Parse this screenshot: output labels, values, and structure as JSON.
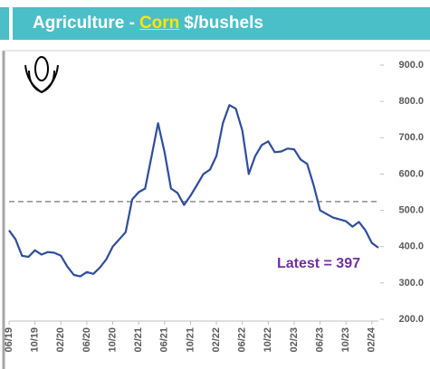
{
  "chart_data": {
    "type": "line",
    "title": {
      "prefix": "Agriculture -",
      "highlight": "Corn",
      "suffix": "$/bushels"
    },
    "categories": [
      "06/19",
      null,
      null,
      null,
      "10/19",
      null,
      null,
      null,
      "02/20",
      null,
      null,
      null,
      "06/20",
      null,
      null,
      null,
      "10/20",
      null,
      null,
      null,
      "02/21",
      null,
      null,
      null,
      "06/21",
      null,
      null,
      null,
      "10/21",
      null,
      null,
      null,
      "02/22",
      null,
      null,
      null,
      "06/22",
      null,
      null,
      null,
      "10/22",
      null,
      null,
      null,
      "02/23",
      null,
      null,
      null,
      "06/23",
      null,
      null,
      null,
      "10/23",
      null,
      null,
      null,
      "02/24",
      null
    ],
    "series": [
      {
        "name": "Corn",
        "color": "#2e4d9c",
        "values": [
          445,
          420,
          375,
          372,
          390,
          378,
          385,
          383,
          375,
          345,
          322,
          318,
          330,
          325,
          342,
          365,
          400,
          420,
          440,
          530,
          550,
          560,
          650,
          740,
          660,
          560,
          548,
          515,
          540,
          570,
          600,
          612,
          650,
          740,
          790,
          780,
          720,
          600,
          650,
          680,
          690,
          660,
          662,
          670,
          668,
          640,
          628,
          570,
          500,
          490,
          480,
          475,
          470,
          455,
          468,
          445,
          410,
          397
        ]
      }
    ],
    "reference_line": 524,
    "annotation": "Latest = 397",
    "ylim": [
      200,
      900
    ],
    "yticks": [
      {
        "value": 200,
        "label": "200.0"
      },
      {
        "value": 300,
        "label": "300.0"
      },
      {
        "value": 400,
        "label": "400.0"
      },
      {
        "value": 500,
        "label": "500.0"
      },
      {
        "value": 600,
        "label": "600.0"
      },
      {
        "value": 700,
        "label": "700.0"
      },
      {
        "value": 800,
        "label": "800.0"
      },
      {
        "value": 900,
        "label": "900.0"
      }
    ]
  }
}
